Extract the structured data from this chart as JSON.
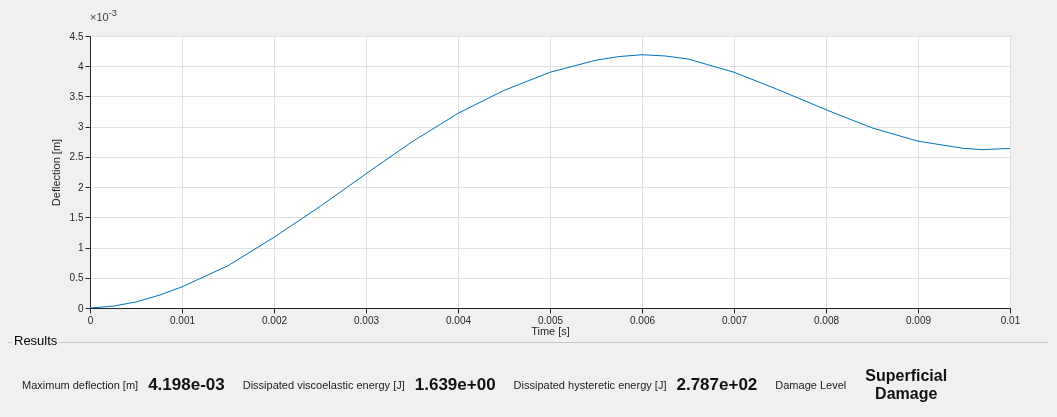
{
  "chart_data": {
    "type": "line",
    "xlabel": "Time [s]",
    "ylabel": "Deflection [m]",
    "x": [
      0,
      0.00025,
      0.0005,
      0.00075,
      0.001,
      0.0015,
      0.002,
      0.0025,
      0.003,
      0.0035,
      0.004,
      0.0045,
      0.005,
      0.0055,
      0.00575,
      0.006,
      0.00625,
      0.0065,
      0.007,
      0.0075,
      0.008,
      0.0085,
      0.009,
      0.0095,
      0.0097,
      0.01
    ],
    "series": [
      {
        "color": "#0072bd",
        "values": [
          0,
          0.03,
          0.1,
          0.21,
          0.35,
          0.7,
          1.17,
          1.68,
          2.22,
          2.75,
          3.22,
          3.6,
          3.9,
          4.1,
          4.16,
          4.19,
          4.17,
          4.12,
          3.9,
          3.6,
          3.28,
          2.98,
          2.76,
          2.64,
          2.62,
          2.64
        ]
      }
    ],
    "xlim": [
      0,
      0.01
    ],
    "xticks": [
      0,
      0.001,
      0.002,
      0.003,
      0.004,
      0.005,
      0.006,
      0.007,
      0.008,
      0.009,
      0.01
    ],
    "ylim": [
      0,
      4.5
    ],
    "yticks": [
      0,
      0.5,
      1,
      1.5,
      2,
      2.5,
      3,
      3.5,
      4,
      4.5
    ],
    "grid": true,
    "annotations": [
      "×10$^{-3}$",
      "Results",
      "Maximum deflection [m]",
      "4.198e-03",
      "Dissipated viscoelastic energy [J]",
      "1.639e+00",
      "Dissipated hysteretic energy [J]",
      "2.787e+02",
      "Damage Level",
      "Superficial Damage"
    ]
  }
}
